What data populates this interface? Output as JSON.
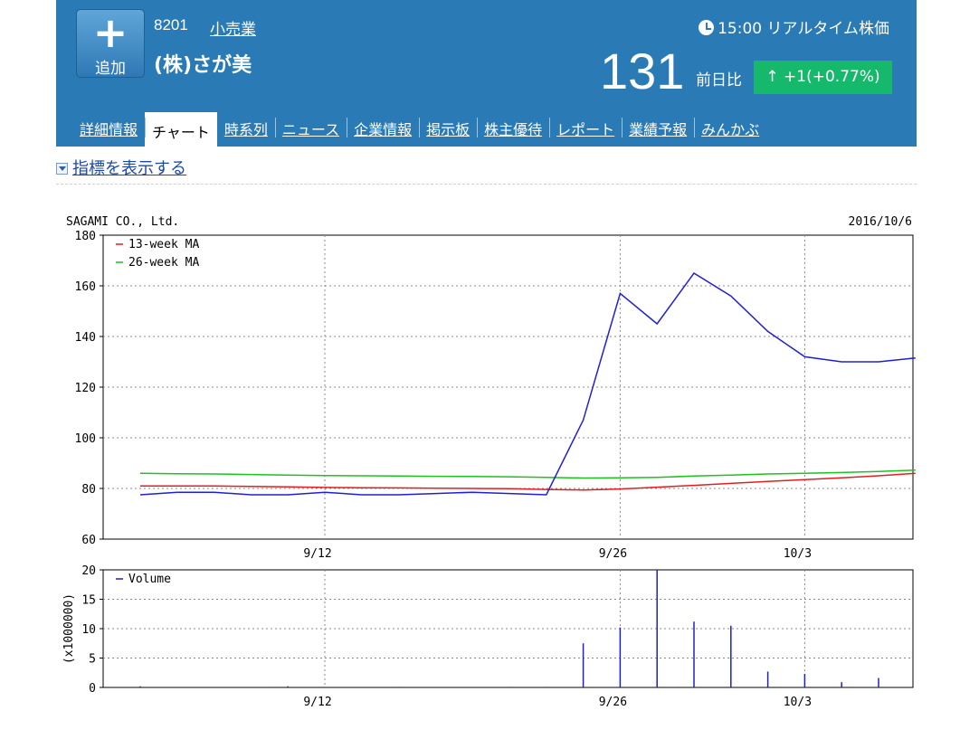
{
  "header": {
    "add_icon": "plus-icon",
    "add_label": "追加",
    "code": "8201",
    "industry": "小売業",
    "company": "(株)さが美",
    "clock_icon": "clock-icon",
    "realtime": "15:00 リアルタイム株価",
    "price": "131",
    "change_label": "前日比",
    "change": "+1(+0.77%)",
    "up_icon": "arrow-up-icon"
  },
  "tabs": [
    {
      "label": "詳細情報"
    },
    {
      "label": "チャート"
    },
    {
      "label": "時系列"
    },
    {
      "label": "ニュース"
    },
    {
      "label": "企業情報"
    },
    {
      "label": "掲示板"
    },
    {
      "label": "株主優待"
    },
    {
      "label": "レポート"
    },
    {
      "label": "業績予報"
    },
    {
      "label": "みんかぶ"
    }
  ],
  "indicator_toggle": "指標を表示する",
  "colors": {
    "brand": "#2a7ab5",
    "up_badge": "#16b96b",
    "price_line": "#2020d0",
    "ma13": "#e02020",
    "ma26": "#20c020",
    "volume": "#2020c0"
  },
  "chart_data": [
    {
      "type": "line",
      "title": "SAGAMI CO., Ltd.",
      "date": "2016/10/6",
      "x": [
        "9/5",
        "9/6",
        "9/7",
        "9/8",
        "9/9",
        "9/12",
        "9/13",
        "9/14",
        "9/15",
        "9/16",
        "9/20",
        "9/21",
        "9/23",
        "9/26",
        "9/27",
        "9/28",
        "9/29",
        "9/30",
        "10/3",
        "10/4",
        "10/5",
        "10/6"
      ],
      "xticks": [
        "9/12",
        "9/26",
        "10/3"
      ],
      "ylim": [
        60,
        180
      ],
      "yticks": [
        60,
        80,
        100,
        120,
        140,
        160,
        180
      ],
      "grid": true,
      "legend": "top-left",
      "series": [
        {
          "name": "13-week MA",
          "values": [
            81,
            81,
            81,
            80.8,
            80.6,
            80.4,
            80.3,
            80.2,
            80.1,
            80,
            79.9,
            79.6,
            79.4,
            79.8,
            80.5,
            81.2,
            82,
            82.8,
            83.5,
            84.2,
            85,
            86
          ]
        },
        {
          "name": "26-week MA",
          "values": [
            86,
            85.8,
            85.7,
            85.5,
            85.3,
            85.1,
            85,
            84.9,
            84.8,
            84.7,
            84.6,
            84.4,
            84.1,
            84.2,
            84.4,
            84.9,
            85.3,
            85.7,
            86,
            86.3,
            86.7,
            87.2
          ]
        },
        {
          "values": [
            77.5,
            78.5,
            78.5,
            77.5,
            77.5,
            78.5,
            77.5,
            77.5,
            78,
            78.5,
            78,
            77.5,
            107,
            157,
            145,
            165,
            156,
            142,
            132,
            130,
            130,
            131.5
          ]
        }
      ]
    },
    {
      "type": "bar",
      "x": [
        "9/5",
        "9/6",
        "9/7",
        "9/8",
        "9/9",
        "9/12",
        "9/13",
        "9/14",
        "9/15",
        "9/16",
        "9/20",
        "9/21",
        "9/23",
        "9/26",
        "9/27",
        "9/28",
        "9/29",
        "9/30",
        "10/3",
        "10/4",
        "10/5",
        "10/6"
      ],
      "xticks": [
        "9/12",
        "9/26",
        "10/3"
      ],
      "ylabel": "(x1000000)",
      "ylim": [
        0,
        20
      ],
      "yticks": [
        0,
        5,
        10,
        15,
        20
      ],
      "grid": true,
      "legend": "top-left",
      "series": [
        {
          "name": "Volume",
          "values": [
            0.2,
            0,
            0,
            0,
            0.2,
            0,
            0,
            0.1,
            0,
            0,
            0.1,
            0.1,
            7.5,
            10.2,
            20,
            11.2,
            10.5,
            2.7,
            2.3,
            0.9,
            1.6,
            0
          ]
        }
      ]
    }
  ]
}
